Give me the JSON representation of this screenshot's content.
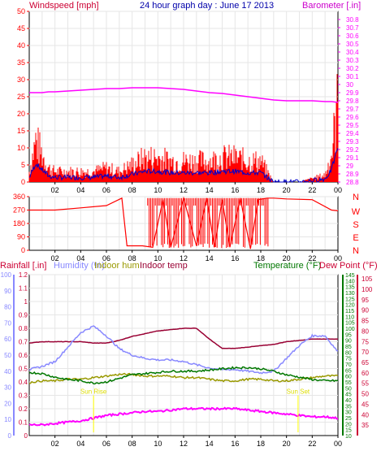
{
  "titles": {
    "main": "24 hour graph day : June 17 2013",
    "wind_left": "Windspeed [mph]",
    "baro_right": "Barometer [.in]",
    "rain_left": "Rainfall [.in]",
    "humidity": "Humidity (%)",
    "indoor_hum": "Indoor hum",
    "indoor_temp": "Indoor temp",
    "temperature": "Temperature (°F)",
    "dewpoint": "Dew Point (°F)"
  },
  "colors": {
    "wind": "#ff0000",
    "gust_dark": "#0000cc",
    "barometer": "#ff00ff",
    "rain_axis": "#cc0033",
    "humidity": "#8888ff",
    "indoor_hum": "#999900",
    "indoor_temp": "#990033",
    "temperature": "#007700",
    "dewpoint": "#cc0033",
    "solar": "#ff00ff",
    "label_yellow": "#ffff00",
    "grid": "#e6e6e6",
    "frame": "#000000"
  },
  "x_labels": [
    "02",
    "04",
    "06",
    "08",
    "10",
    "12",
    "14",
    "16",
    "18",
    "20",
    "22",
    "00"
  ],
  "annotations": {
    "sunrise": "Sun Rise",
    "sunset": "Sun Set"
  },
  "chart_data": [
    {
      "type": "line",
      "name": "wind-barometer",
      "title": "24 hour graph day : June 17 2013",
      "x_hours": [
        0,
        0.5,
        1,
        1.5,
        2,
        3,
        4,
        5,
        6,
        7,
        8,
        9,
        10,
        11,
        12,
        13,
        14,
        15,
        16,
        17,
        18,
        19,
        20,
        21,
        22,
        23,
        23.5,
        24
      ],
      "series": [
        {
          "name": "Windspeed [mph]",
          "axis": "left",
          "ylim": [
            0,
            50
          ],
          "ticks": [
            "0",
            "5",
            "10",
            "15",
            "20",
            "25",
            "30",
            "35",
            "40",
            "45",
            "50"
          ],
          "values": [
            3,
            12,
            8,
            4,
            3,
            3,
            3,
            3,
            4,
            3,
            5,
            7,
            7,
            6,
            6,
            6,
            6,
            7,
            7,
            6,
            6,
            0,
            0,
            0,
            1,
            2,
            8,
            23
          ]
        },
        {
          "name": "Barometer [.in]",
          "axis": "right",
          "ylim": [
            28.8,
            30.9
          ],
          "ticks": [
            "28.8",
            "28.9",
            "29",
            "29.1",
            "29.2",
            "29.3",
            "29.4",
            "29.5",
            "29.6",
            "29.7",
            "29.8",
            "29.9",
            "30",
            "30.1",
            "30.2",
            "30.3",
            "30.4",
            "30.5",
            "30.6",
            "30.7",
            "30.8"
          ],
          "values": [
            29.9,
            29.9,
            29.9,
            29.91,
            29.91,
            29.92,
            29.93,
            29.94,
            29.95,
            29.95,
            29.96,
            29.96,
            29.96,
            29.95,
            29.94,
            29.92,
            29.9,
            29.89,
            29.87,
            29.85,
            29.83,
            29.81,
            29.8,
            29.8,
            29.8,
            29.79,
            29.79,
            29.78
          ]
        }
      ]
    },
    {
      "type": "line",
      "name": "wind-direction",
      "left_ticks": [
        "0",
        "90",
        "180",
        "270",
        "360"
      ],
      "right_labels": [
        "N",
        "W",
        "S",
        "E",
        "N"
      ],
      "ylim": [
        0,
        360
      ],
      "x_hours": [
        0,
        2,
        4,
        6,
        7.2,
        7.6,
        8.8,
        9.6,
        10.4,
        11,
        12,
        13,
        13.8,
        14.4,
        15,
        15.6,
        16.4,
        17.2,
        17.8,
        18.5,
        19,
        20,
        22,
        23.5,
        24
      ],
      "values": [
        270,
        270,
        285,
        300,
        350,
        30,
        30,
        20,
        340,
        20,
        350,
        30,
        350,
        20,
        340,
        20,
        350,
        10,
        340,
        350,
        350,
        345,
        340,
        270,
        265
      ]
    },
    {
      "type": "line",
      "name": "climate",
      "x_hours": [
        0,
        1,
        2,
        3,
        4,
        5,
        6,
        7,
        8,
        9,
        10,
        11,
        12,
        13,
        14,
        15,
        16,
        17,
        18,
        19,
        20,
        21,
        22,
        23,
        24
      ],
      "series": [
        {
          "name": "Indoor temp",
          "axis": "rain",
          "ylim": [
            0,
            1.2
          ],
          "values": [
            0.69,
            0.7,
            0.7,
            0.7,
            0.7,
            0.69,
            0.69,
            0.71,
            0.74,
            0.76,
            0.78,
            0.79,
            0.8,
            0.8,
            0.72,
            0.65,
            0.65,
            0.66,
            0.67,
            0.68,
            0.7,
            0.71,
            0.72,
            0.72,
            0.72
          ]
        },
        {
          "name": "Humidity (%)",
          "axis": "humidity",
          "ylim": [
            0,
            100
          ],
          "values": [
            41,
            43,
            46,
            55,
            64,
            68,
            62,
            54,
            50,
            48,
            47,
            47,
            46,
            44,
            42,
            41,
            41,
            40,
            39,
            40,
            48,
            56,
            62,
            62,
            52
          ]
        },
        {
          "name": "Indoor hum",
          "axis": "humidity",
          "ylim": [
            0,
            100
          ],
          "values": [
            33,
            34,
            34,
            35,
            35,
            36,
            37,
            38,
            38,
            37,
            37,
            37,
            36,
            36,
            35,
            34,
            34,
            35,
            35,
            34,
            34,
            35,
            36,
            37,
            37
          ]
        },
        {
          "name": "Temperature (°F)",
          "axis": "temperature",
          "ylim": [
            10,
            145
          ],
          "values": [
            63,
            62,
            59,
            57,
            56,
            54,
            55,
            58,
            61,
            62,
            63,
            64,
            64,
            64,
            65,
            66,
            67,
            67,
            66,
            64,
            61,
            59,
            57,
            56,
            56
          ]
        },
        {
          "name": "Solar",
          "axis": "rain",
          "ylim": [
            0,
            1.2
          ],
          "values": [
            0.08,
            0.08,
            0.09,
            0.1,
            0.11,
            0.13,
            0.15,
            0.16,
            0.17,
            0.18,
            0.18,
            0.19,
            0.2,
            0.2,
            0.2,
            0.2,
            0.2,
            0.19,
            0.18,
            0.17,
            0.16,
            0.15,
            0.14,
            0.14,
            0.13
          ]
        }
      ],
      "axes": {
        "rain_ticks": [
          "0",
          "0.1",
          "0.2",
          "0.3",
          "0.4",
          "0.5",
          "0.6",
          "0.7",
          "0.8",
          "0.9",
          "1",
          "1.1",
          "1.2"
        ],
        "humidity_ticks": [
          "0",
          "10",
          "20",
          "30",
          "40",
          "50",
          "60",
          "70",
          "80",
          "90",
          "100"
        ],
        "temperature_ticks": [
          "10",
          "15",
          "20",
          "25",
          "30",
          "35",
          "40",
          "45",
          "50",
          "55",
          "60",
          "65",
          "70",
          "75",
          "80",
          "85",
          "90",
          "95",
          "100",
          "105",
          "110",
          "115",
          "120",
          "125",
          "130",
          "135",
          "140",
          "145"
        ],
        "dewpoint_ticks": [
          "35",
          "40",
          "45",
          "50",
          "55",
          "60",
          "65",
          "70",
          "75",
          "80",
          "85",
          "90",
          "95",
          "100",
          "105"
        ]
      },
      "annotations": [
        {
          "text": "Sun Rise",
          "x_hour": 5.0
        },
        {
          "text": "Sun Set",
          "x_hour": 20.9
        }
      ]
    }
  ]
}
